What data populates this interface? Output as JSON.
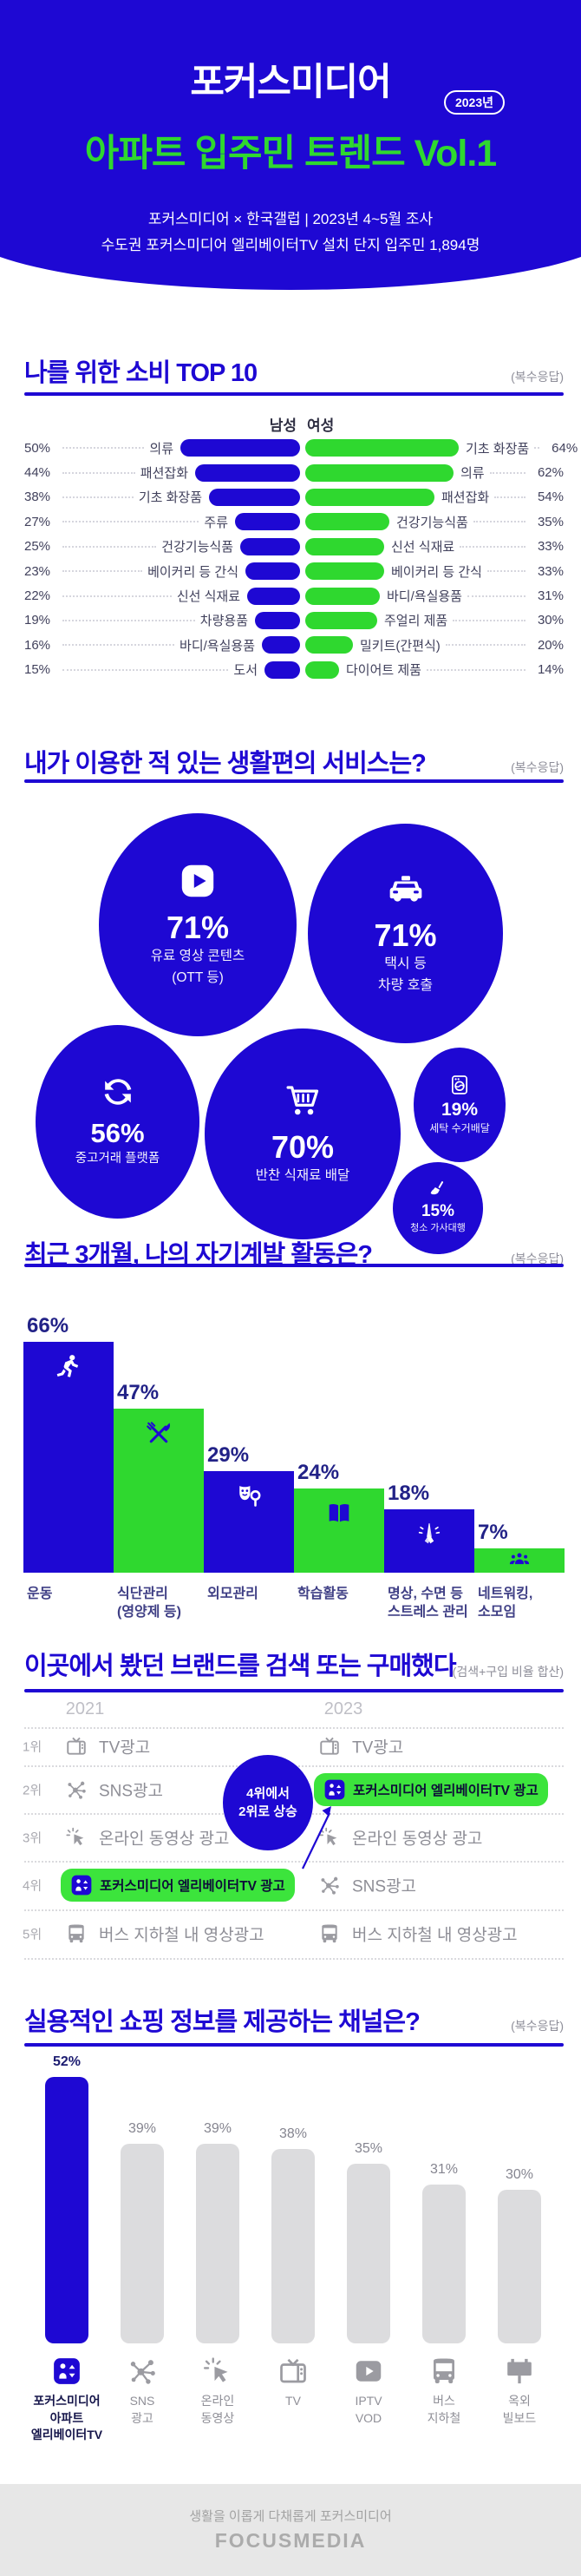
{
  "colors": {
    "blue": "#1E08D3",
    "green": "#2FD82F",
    "pill_green": "#3CE43C",
    "gray_bar": "#DCDCDE",
    "gray_icon": "#9B9BA1",
    "footer_bg": "#E7E7E7"
  },
  "header": {
    "brand": "포커스미디어",
    "year_badge": "2023년",
    "title": "아파트 입주민 트렌드 Vol.1",
    "subtitle1": "포커스미디어 × 한국갤럽 | 2023년 4~5월 조사",
    "subtitle2": "수도권 포커스미디어 엘리베이터TV 설치 단지 입주민 1,894명"
  },
  "consumption": {
    "title": "나를 위한 소비 TOP 10",
    "note": "(복수응답)",
    "male_header": "남성",
    "female_header": "여성",
    "rows": [
      {
        "male_value": "50%",
        "male_v": 50,
        "male_label": "의류",
        "female_label": "기초 화장품",
        "female_v": 64,
        "female_value": "64%"
      },
      {
        "male_value": "44%",
        "male_v": 44,
        "male_label": "패션잡화",
        "female_label": "의류",
        "female_v": 62,
        "female_value": "62%"
      },
      {
        "male_value": "38%",
        "male_v": 38,
        "male_label": "기초 화장품",
        "female_label": "패션잡화",
        "female_v": 54,
        "female_value": "54%"
      },
      {
        "male_value": "27%",
        "male_v": 27,
        "male_label": "주류",
        "female_label": "건강기능식품",
        "female_v": 35,
        "female_value": "35%"
      },
      {
        "male_value": "25%",
        "male_v": 25,
        "male_label": "건강기능식품",
        "female_label": "신선 식재료",
        "female_v": 33,
        "female_value": "33%"
      },
      {
        "male_value": "23%",
        "male_v": 23,
        "male_label": "베이커리 등 간식",
        "female_label": "베이커리 등 간식",
        "female_v": 33,
        "female_value": "33%"
      },
      {
        "male_value": "22%",
        "male_v": 22,
        "male_label": "신선 식재료",
        "female_label": "바디/욕실용품",
        "female_v": 31,
        "female_value": "31%"
      },
      {
        "male_value": "19%",
        "male_v": 19,
        "male_label": "차량용품",
        "female_label": "주얼리 제품",
        "female_v": 30,
        "female_value": "30%"
      },
      {
        "male_value": "16%",
        "male_v": 16,
        "male_label": "바디/욕실용품",
        "female_label": "밀키트(간편식)",
        "female_v": 20,
        "female_value": "20%"
      },
      {
        "male_value": "15%",
        "male_v": 15,
        "male_label": "도서",
        "female_label": "다이어트 제품",
        "female_v": 14,
        "female_value": "14%"
      }
    ]
  },
  "services": {
    "title": "내가 이용한 적 있는 생활편의 서비스는?",
    "note": "(복수응답)",
    "items": [
      {
        "icon": "play",
        "value": "71%",
        "lines": [
          "유료 영상 콘텐츠",
          "(OTT 등)"
        ]
      },
      {
        "icon": "taxi",
        "value": "71%",
        "lines": [
          "택시 등",
          "차량 호출"
        ]
      },
      {
        "icon": "refresh",
        "value": "56%",
        "lines": [
          "중고거래 플랫폼"
        ]
      },
      {
        "icon": "cart",
        "value": "70%",
        "lines": [
          "반찬 식재료 배달"
        ]
      },
      {
        "icon": "laundry",
        "value": "19%",
        "lines": [
          "세탁 수거배달"
        ]
      },
      {
        "icon": "broom",
        "value": "15%",
        "lines": [
          "청소 가사대행"
        ]
      }
    ]
  },
  "selfdev": {
    "title": "최근 3개월, 나의 자기계발 활동은?",
    "note": "(복수응답)",
    "bars": [
      {
        "icon": "runner",
        "pct": "66%",
        "value": 66,
        "color": "blue",
        "lines": [
          "운동"
        ]
      },
      {
        "icon": "utensils",
        "pct": "47%",
        "value": 47,
        "color": "green",
        "lines": [
          "식단관리",
          "(영양제 등)"
        ]
      },
      {
        "icon": "beauty",
        "pct": "29%",
        "value": 29,
        "color": "blue",
        "lines": [
          "외모관리"
        ]
      },
      {
        "icon": "book",
        "pct": "24%",
        "value": 24,
        "color": "green",
        "lines": [
          "학습활동"
        ]
      },
      {
        "icon": "pray",
        "pct": "18%",
        "value": 18,
        "color": "blue",
        "lines": [
          "명상, 수면 등",
          "스트레스 관리"
        ]
      },
      {
        "icon": "people",
        "pct": "7%",
        "value": 7,
        "color": "green",
        "lines": [
          "네트워킹,",
          "소모임"
        ]
      }
    ]
  },
  "brand": {
    "title": "이곳에서 봤던 브랜드를 검색 또는 구매했다",
    "note": "(검색+구입 비율 합산)",
    "year_left": "2021",
    "year_right": "2023",
    "ranks": [
      "1위",
      "2위",
      "3위",
      "4위",
      "5위"
    ],
    "list_2021": [
      {
        "icon": "tv",
        "label": "TV광고",
        "highlight": false
      },
      {
        "icon": "sns",
        "label": "SNS광고",
        "highlight": false
      },
      {
        "icon": "cursor",
        "label": "온라인 동영상 광고",
        "highlight": false
      },
      {
        "icon": "elevator",
        "label": "포커스미디어 엘리베이터TV 광고",
        "highlight": true
      },
      {
        "icon": "bus",
        "label": "버스 지하철 내 영상광고",
        "highlight": false
      }
    ],
    "list_2023": [
      {
        "icon": "tv",
        "label": "TV광고",
        "highlight": false
      },
      {
        "icon": "elevator",
        "label": "포커스미디어 엘리베이터TV 광고",
        "highlight": true
      },
      {
        "icon": "cursor",
        "label": "온라인 동영상 광고",
        "highlight": false
      },
      {
        "icon": "sns",
        "label": "SNS광고",
        "highlight": false
      },
      {
        "icon": "bus",
        "label": "버스 지하철 내 영상광고",
        "highlight": false
      }
    ],
    "callout": [
      "4위에서",
      "2위로 상승"
    ]
  },
  "channels": {
    "title": "실용적인 쇼핑 정보를 제공하는 채널은?",
    "note": "(복수응답)",
    "bars": [
      {
        "icon": "elevator",
        "pct": "52%",
        "value": 52,
        "highlight": true,
        "lines": [
          "포커스미디어",
          "아파트",
          "엘리베이터TV"
        ]
      },
      {
        "icon": "sns",
        "pct": "39%",
        "value": 39,
        "highlight": false,
        "lines": [
          "SNS",
          "광고"
        ]
      },
      {
        "icon": "cursor",
        "pct": "39%",
        "value": 39,
        "highlight": false,
        "lines": [
          "온라인",
          "동영상"
        ]
      },
      {
        "icon": "tv",
        "pct": "38%",
        "value": 38,
        "highlight": false,
        "lines": [
          "TV"
        ]
      },
      {
        "icon": "iptv",
        "pct": "35%",
        "value": 35,
        "highlight": false,
        "lines": [
          "IPTV",
          "VOD"
        ]
      },
      {
        "icon": "bus",
        "pct": "31%",
        "value": 31,
        "highlight": false,
        "lines": [
          "버스",
          "지하철"
        ]
      },
      {
        "icon": "billboard",
        "pct": "30%",
        "value": 30,
        "highlight": false,
        "lines": [
          "옥외",
          "빌보드"
        ]
      }
    ]
  },
  "footer": {
    "tagline": "생활을 이롭게 다채롭게 포커스미디어",
    "logo": "FOCUSMEDIA"
  },
  "chart_data": [
    {
      "type": "bar",
      "title": "나를 위한 소비 TOP 10",
      "orientation": "butterfly",
      "unit": "%",
      "series": [
        {
          "name": "남성",
          "data": [
            [
              "의류",
              50
            ],
            [
              "패션잡화",
              44
            ],
            [
              "기초 화장품",
              38
            ],
            [
              "주류",
              27
            ],
            [
              "건강기능식품",
              25
            ],
            [
              "베이커리 등 간식",
              23
            ],
            [
              "신선 식재료",
              22
            ],
            [
              "차량용품",
              19
            ],
            [
              "바디/욕실용품",
              16
            ],
            [
              "도서",
              15
            ]
          ]
        },
        {
          "name": "여성",
          "data": [
            [
              "기초 화장품",
              64
            ],
            [
              "의류",
              62
            ],
            [
              "패션잡화",
              54
            ],
            [
              "건강기능식품",
              35
            ],
            [
              "신선 식재료",
              33
            ],
            [
              "베이커리 등 간식",
              33
            ],
            [
              "바디/욕실용품",
              31
            ],
            [
              "주얼리 제품",
              30
            ],
            [
              "밀키트(간편식)",
              20
            ],
            [
              "다이어트 제품",
              14
            ]
          ]
        }
      ]
    },
    {
      "type": "bubble",
      "title": "내가 이용한 적 있는 생활편의 서비스는?",
      "unit": "%",
      "data": [
        [
          "유료 영상 콘텐츠 (OTT 등)",
          71
        ],
        [
          "택시 등 차량 호출",
          71
        ],
        [
          "반찬 식재료 배달",
          70
        ],
        [
          "중고거래 플랫폼",
          56
        ],
        [
          "세탁 수거배달",
          19
        ],
        [
          "청소 가사대행",
          15
        ]
      ]
    },
    {
      "type": "bar",
      "title": "최근 3개월, 나의 자기계발 활동은?",
      "unit": "%",
      "categories": [
        "운동",
        "식단관리 (영양제 등)",
        "외모관리",
        "학습활동",
        "명상, 수면 등 스트레스 관리",
        "네트워킹, 소모임"
      ],
      "values": [
        66,
        47,
        29,
        24,
        18,
        7
      ]
    },
    {
      "type": "table",
      "title": "이곳에서 봤던 브랜드를 검색 또는 구매했다",
      "columns": [
        "2021",
        "2023"
      ],
      "rows": [
        [
          "TV광고",
          "TV광고"
        ],
        [
          "SNS광고",
          "포커스미디어 엘리베이터TV 광고"
        ],
        [
          "온라인 동영상 광고",
          "온라인 동영상 광고"
        ],
        [
          "포커스미디어 엘리베이터TV 광고",
          "SNS광고"
        ],
        [
          "버스 지하철 내 영상광고",
          "버스 지하철 내 영상광고"
        ]
      ],
      "annotation": "4위에서 2위로 상승"
    },
    {
      "type": "bar",
      "title": "실용적인 쇼핑 정보를 제공하는 채널은?",
      "unit": "%",
      "categories": [
        "포커스미디어 아파트 엘리베이터TV",
        "SNS 광고",
        "온라인 동영상",
        "TV",
        "IPTV VOD",
        "버스 지하철",
        "옥외 빌보드"
      ],
      "values": [
        52,
        39,
        39,
        38,
        35,
        31,
        30
      ]
    }
  ]
}
